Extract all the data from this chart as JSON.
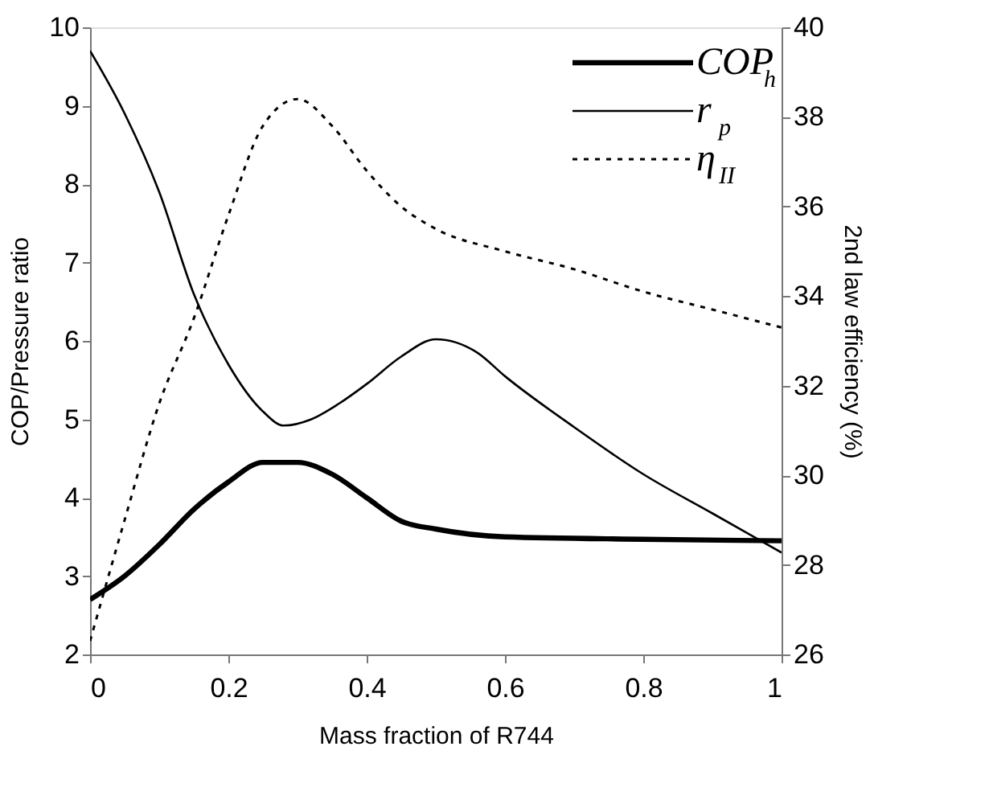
{
  "chart_data": {
    "type": "line",
    "xlabel": "Mass fraction of R744",
    "ylabel": "COP/Pressure ratio",
    "y2label": "2nd law efficiency (%)",
    "xlim": [
      0,
      1
    ],
    "xticks": [
      0,
      0.2,
      0.4,
      0.6,
      0.8,
      1
    ],
    "ylim": [
      2,
      10
    ],
    "yticks": [
      2,
      3,
      4,
      5,
      6,
      7,
      8,
      9,
      10
    ],
    "y2lim": [
      26,
      40
    ],
    "y2ticks": [
      26,
      28,
      30,
      32,
      34,
      36,
      38,
      40
    ],
    "grid": false,
    "legend": "top right",
    "marker": "none",
    "series": [
      {
        "name": "COP$_{h}$",
        "color": "#000000",
        "line_style": "solid",
        "x": [
          0,
          0.05,
          0.1,
          0.15,
          0.2,
          0.25,
          0.3,
          0.35,
          0.4,
          0.45,
          0.5,
          0.6,
          0.8,
          1
        ],
        "values": [
          2.7,
          3.0,
          3.4,
          3.85,
          4.2,
          4.45,
          4.45,
          4.3,
          4.0,
          3.7,
          3.6,
          3.5,
          3.47,
          3.45
        ]
      },
      {
        "name": "r$_{p}$",
        "color": "#000000",
        "line_style": "solid",
        "x": [
          0,
          0.05,
          0.1,
          0.15,
          0.2,
          0.25,
          0.28,
          0.32,
          0.36,
          0.4,
          0.45,
          0.5,
          0.56,
          0.6,
          0.7,
          0.8,
          0.9,
          1
        ],
        "values": [
          9.7,
          8.9,
          7.9,
          6.6,
          5.7,
          5.1,
          4.92,
          5.0,
          5.2,
          5.45,
          5.8,
          6.02,
          5.85,
          5.55,
          4.9,
          4.3,
          3.8,
          3.3
        ]
      },
      {
        "name": "η$_{II}$",
        "color": "#000000",
        "line_style": "dotted",
        "axis": "y2",
        "x": [
          0,
          0.05,
          0.1,
          0.15,
          0.2,
          0.25,
          0.3,
          0.35,
          0.4,
          0.45,
          0.5,
          0.6,
          0.7,
          0.8,
          0.9,
          1
        ],
        "values": [
          26.3,
          29,
          31.6,
          33.5,
          35.8,
          37.8,
          38.4,
          37.8,
          36.8,
          36.0,
          35.5,
          35.0,
          34.6,
          34.1,
          33.7,
          33.3
        ]
      }
    ]
  }
}
